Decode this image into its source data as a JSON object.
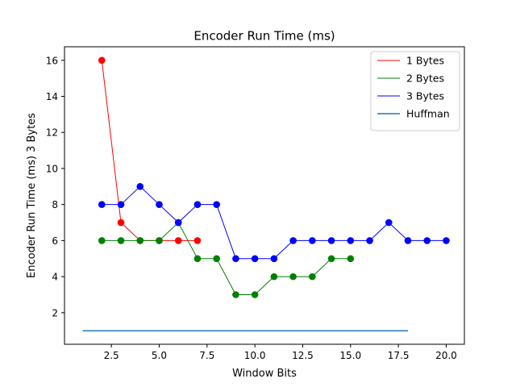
{
  "chart_data": {
    "type": "line",
    "title": "Encoder Run Time (ms)",
    "xlabel": "Window Bits",
    "ylabel": "Encoder Run Time (ms) 3 Bytes",
    "xlim": [
      0.05,
      20.95
    ],
    "ylim": [
      0.25,
      16.75
    ],
    "xticks": [
      2.5,
      5.0,
      7.5,
      10.0,
      12.5,
      15.0,
      17.5,
      20.0
    ],
    "xtick_labels": [
      "2.5",
      "5.0",
      "7.5",
      "10.0",
      "12.5",
      "15.0",
      "17.5",
      "20.0"
    ],
    "yticks": [
      2,
      4,
      6,
      8,
      10,
      12,
      14,
      16
    ],
    "ytick_labels": [
      "2",
      "4",
      "6",
      "8",
      "10",
      "12",
      "14",
      "16"
    ],
    "grid": false,
    "legend_position": "top-right",
    "series": [
      {
        "name": "1 Bytes",
        "color": "#ff0000",
        "line_color": "#ff0000",
        "marker_color": "#ff0000",
        "x": [
          2,
          3,
          4,
          5,
          6,
          7
        ],
        "y": [
          16,
          7,
          6,
          6,
          6,
          6
        ]
      },
      {
        "name": "2 Bytes",
        "color": "#008000",
        "line_color": "#008000",
        "marker_color": "#008000",
        "x": [
          2,
          3,
          4,
          5,
          6,
          7,
          8,
          9,
          10,
          11,
          12,
          13,
          14,
          15
        ],
        "y": [
          6,
          6,
          6,
          6,
          7,
          5,
          5,
          3,
          3,
          4,
          4,
          4,
          5,
          5
        ]
      },
      {
        "name": "3 Bytes",
        "color": "#0000ff",
        "line_color": "#0000ff",
        "marker_color": "#0000ff",
        "x": [
          2,
          3,
          4,
          5,
          6,
          7,
          8,
          9,
          10,
          11,
          12,
          13,
          14,
          15,
          16,
          17,
          18,
          19,
          20
        ],
        "y": [
          8,
          8,
          9,
          8,
          7,
          8,
          8,
          5,
          5,
          5,
          6,
          6,
          6,
          6,
          6,
          7,
          6,
          6,
          6
        ]
      },
      {
        "name": "Huffman",
        "color": "#1f77b4",
        "line_color": "#1f77b4",
        "marker_color": null,
        "x": [
          1,
          18
        ],
        "y": [
          1,
          1
        ]
      }
    ]
  }
}
